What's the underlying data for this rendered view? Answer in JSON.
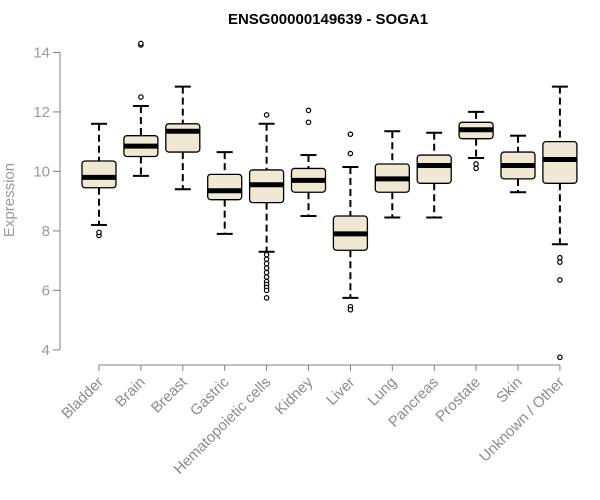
{
  "chart_data": {
    "type": "boxplot",
    "title": "ENSG00000149639 - SOGA1",
    "xlabel": "",
    "ylabel": "Expression",
    "ylim": [
      3.5,
      14.5
    ],
    "yticks": [
      4,
      6,
      8,
      10,
      12,
      14
    ],
    "grid": false,
    "colors": {
      "box_fill": "#efe8d2",
      "box_stroke": "#000000",
      "median": "#000000",
      "axis": "#808080",
      "tick_label": "#9a9a9a"
    },
    "categories": [
      "Bladder",
      "Brain",
      "Breast",
      "Gastric",
      "Hematopoietic cells",
      "Kidney",
      "Liver",
      "Lung",
      "Pancreas",
      "Prostate",
      "Skin",
      "Unknown / Other"
    ],
    "boxes": [
      {
        "name": "Bladder",
        "whisker_low": 8.2,
        "q1": 9.45,
        "median": 9.8,
        "q3": 10.35,
        "whisker_high": 11.6,
        "outliers": [
          7.85,
          7.95
        ]
      },
      {
        "name": "Brain",
        "whisker_low": 9.85,
        "q1": 10.5,
        "median": 10.85,
        "q3": 11.2,
        "whisker_high": 12.2,
        "outliers": [
          12.5,
          14.25,
          14.3
        ]
      },
      {
        "name": "Breast",
        "whisker_low": 9.4,
        "q1": 10.65,
        "median": 11.35,
        "q3": 11.6,
        "whisker_high": 12.85,
        "outliers": []
      },
      {
        "name": "Gastric",
        "whisker_low": 7.9,
        "q1": 9.05,
        "median": 9.35,
        "q3": 9.9,
        "whisker_high": 10.65,
        "outliers": []
      },
      {
        "name": "Hematopoietic cells",
        "whisker_low": 7.3,
        "q1": 8.95,
        "median": 9.55,
        "q3": 10.05,
        "whisker_high": 11.6,
        "outliers": [
          11.9,
          7.2,
          7.05,
          6.9,
          6.75,
          6.6,
          6.45,
          6.3,
          6.2,
          6.1,
          6.0,
          5.75
        ]
      },
      {
        "name": "Kidney",
        "whisker_low": 8.5,
        "q1": 9.3,
        "median": 9.7,
        "q3": 10.1,
        "whisker_high": 10.55,
        "outliers": [
          11.65,
          12.05
        ]
      },
      {
        "name": "Liver",
        "whisker_low": 5.75,
        "q1": 7.35,
        "median": 7.9,
        "q3": 8.5,
        "whisker_high": 10.15,
        "outliers": [
          10.6,
          11.25,
          5.45,
          5.35
        ]
      },
      {
        "name": "Lung",
        "whisker_low": 8.45,
        "q1": 9.3,
        "median": 9.75,
        "q3": 10.25,
        "whisker_high": 11.35,
        "outliers": []
      },
      {
        "name": "Pancreas",
        "whisker_low": 8.45,
        "q1": 9.6,
        "median": 10.2,
        "q3": 10.55,
        "whisker_high": 11.3,
        "outliers": []
      },
      {
        "name": "Prostate",
        "whisker_low": 10.45,
        "q1": 11.1,
        "median": 11.4,
        "q3": 11.65,
        "whisker_high": 12.0,
        "outliers": [
          10.25,
          10.1
        ]
      },
      {
        "name": "Skin",
        "whisker_low": 9.3,
        "q1": 9.75,
        "median": 10.2,
        "q3": 10.65,
        "whisker_high": 11.2,
        "outliers": []
      },
      {
        "name": "Unknown / Other",
        "whisker_low": 7.55,
        "q1": 9.6,
        "median": 10.4,
        "q3": 11.0,
        "whisker_high": 12.85,
        "outliers": [
          7.1,
          6.95,
          6.35,
          3.75
        ]
      }
    ]
  }
}
